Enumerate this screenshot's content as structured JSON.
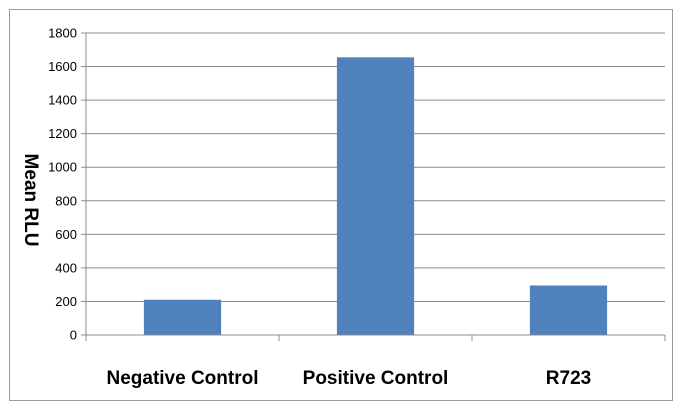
{
  "chart_data": {
    "type": "bar",
    "categories": [
      "Negative Control",
      "Positive Control",
      "R723"
    ],
    "values": [
      210,
      1655,
      295
    ],
    "title": "",
    "xlabel": "",
    "ylabel": "Mean RLU",
    "ylim": [
      0,
      1800
    ],
    "yticks": [
      0,
      200,
      400,
      600,
      800,
      1000,
      1200,
      1400,
      1600,
      1800
    ],
    "grid": "horizontal",
    "legend": "none",
    "bar_color": "#4f81bd",
    "grid_color": "#8c8c8c",
    "axis_color": "#8c8c8c"
  }
}
